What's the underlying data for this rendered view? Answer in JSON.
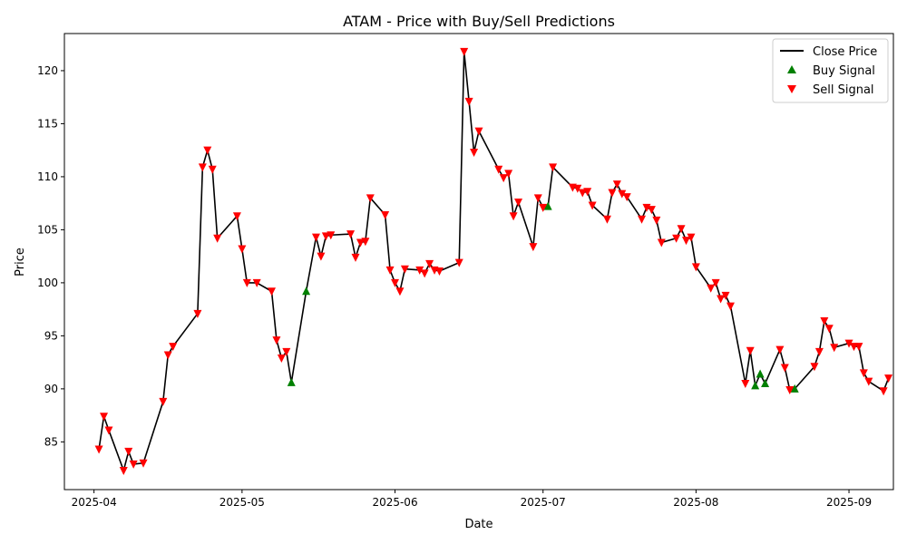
{
  "chart_data": {
    "type": "line",
    "title": "ATAM - Price with Buy/Sell Predictions",
    "xlabel": "Date",
    "ylabel": "Price",
    "x_ticks": [
      "2025-04",
      "2025-05",
      "2025-06",
      "2025-07",
      "2025-08",
      "2025-09"
    ],
    "y_ticks": [
      85,
      90,
      95,
      100,
      105,
      110,
      115,
      120
    ],
    "ylim": [
      80.5,
      123.5
    ],
    "xlim": [
      "2025-03-26",
      "2025-09-10"
    ],
    "grid": false,
    "legend_position": "top-right",
    "colors": {
      "close": "#000000",
      "buy": "#008000",
      "sell": "#ff0000"
    },
    "series": [
      {
        "name": "Close Price",
        "type": "line",
        "points": [
          [
            "2025-04-02",
            84.3
          ],
          [
            "2025-04-03",
            87.4
          ],
          [
            "2025-04-04",
            86.1
          ],
          [
            "2025-04-07",
            82.3
          ],
          [
            "2025-04-08",
            84.1
          ],
          [
            "2025-04-09",
            82.9
          ],
          [
            "2025-04-11",
            83.0
          ],
          [
            "2025-04-15",
            88.8
          ],
          [
            "2025-04-16",
            93.2
          ],
          [
            "2025-04-17",
            94.0
          ],
          [
            "2025-04-22",
            97.1
          ],
          [
            "2025-04-23",
            110.9
          ],
          [
            "2025-04-24",
            112.5
          ],
          [
            "2025-04-25",
            110.7
          ],
          [
            "2025-04-26",
            104.2
          ],
          [
            "2025-04-30",
            106.3
          ],
          [
            "2025-05-01",
            103.2
          ],
          [
            "2025-05-02",
            100.0
          ],
          [
            "2025-05-04",
            100.0
          ],
          [
            "2025-05-07",
            99.2
          ],
          [
            "2025-05-08",
            94.6
          ],
          [
            "2025-05-09",
            92.9
          ],
          [
            "2025-05-10",
            93.5
          ],
          [
            "2025-05-11",
            90.6
          ],
          [
            "2025-05-14",
            99.2
          ],
          [
            "2025-05-16",
            104.3
          ],
          [
            "2025-05-17",
            102.5
          ],
          [
            "2025-05-18",
            104.4
          ],
          [
            "2025-05-19",
            104.5
          ],
          [
            "2025-05-23",
            104.6
          ],
          [
            "2025-05-24",
            102.4
          ],
          [
            "2025-05-25",
            103.8
          ],
          [
            "2025-05-26",
            103.9
          ],
          [
            "2025-05-27",
            108.0
          ],
          [
            "2025-05-30",
            106.4
          ],
          [
            "2025-05-31",
            101.2
          ],
          [
            "2025-06-01",
            100.0
          ],
          [
            "2025-06-02",
            99.2
          ],
          [
            "2025-06-03",
            101.3
          ],
          [
            "2025-06-06",
            101.2
          ],
          [
            "2025-06-07",
            100.9
          ],
          [
            "2025-06-08",
            101.8
          ],
          [
            "2025-06-09",
            101.2
          ],
          [
            "2025-06-10",
            101.1
          ],
          [
            "2025-06-14",
            101.9
          ],
          [
            "2025-06-15",
            121.8
          ],
          [
            "2025-06-16",
            117.1
          ],
          [
            "2025-06-17",
            112.3
          ],
          [
            "2025-06-18",
            114.3
          ],
          [
            "2025-06-22",
            110.7
          ],
          [
            "2025-06-23",
            109.9
          ],
          [
            "2025-06-24",
            110.3
          ],
          [
            "2025-06-25",
            106.3
          ],
          [
            "2025-06-26",
            107.6
          ],
          [
            "2025-06-29",
            103.4
          ],
          [
            "2025-06-30",
            108.0
          ],
          [
            "2025-07-01",
            107.1
          ],
          [
            "2025-07-02",
            107.2
          ],
          [
            "2025-07-03",
            110.9
          ],
          [
            "2025-07-07",
            109.0
          ],
          [
            "2025-07-08",
            108.9
          ],
          [
            "2025-07-09",
            108.5
          ],
          [
            "2025-07-10",
            108.6
          ],
          [
            "2025-07-11",
            107.3
          ],
          [
            "2025-07-14",
            106.0
          ],
          [
            "2025-07-15",
            108.5
          ],
          [
            "2025-07-16",
            109.3
          ],
          [
            "2025-07-17",
            108.4
          ],
          [
            "2025-07-18",
            108.1
          ],
          [
            "2025-07-21",
            106.0
          ],
          [
            "2025-07-22",
            107.1
          ],
          [
            "2025-07-23",
            106.9
          ],
          [
            "2025-07-24",
            105.9
          ],
          [
            "2025-07-25",
            103.8
          ],
          [
            "2025-07-28",
            104.2
          ],
          [
            "2025-07-29",
            105.1
          ],
          [
            "2025-07-30",
            104.0
          ],
          [
            "2025-07-31",
            104.3
          ],
          [
            "2025-08-01",
            101.5
          ],
          [
            "2025-08-04",
            99.5
          ],
          [
            "2025-08-05",
            100.0
          ],
          [
            "2025-08-06",
            98.5
          ],
          [
            "2025-08-07",
            98.8
          ],
          [
            "2025-08-08",
            97.8
          ],
          [
            "2025-08-11",
            90.5
          ],
          [
            "2025-08-12",
            93.6
          ],
          [
            "2025-08-13",
            90.3
          ],
          [
            "2025-08-14",
            91.4
          ],
          [
            "2025-08-15",
            90.5
          ],
          [
            "2025-08-18",
            93.7
          ],
          [
            "2025-08-19",
            92.0
          ],
          [
            "2025-08-20",
            89.9
          ],
          [
            "2025-08-21",
            90.0
          ],
          [
            "2025-08-25",
            92.1
          ],
          [
            "2025-08-26",
            93.5
          ],
          [
            "2025-08-27",
            96.4
          ],
          [
            "2025-08-28",
            95.7
          ],
          [
            "2025-08-29",
            93.9
          ],
          [
            "2025-09-01",
            94.3
          ],
          [
            "2025-09-02",
            94.0
          ],
          [
            "2025-09-03",
            94.0
          ],
          [
            "2025-09-04",
            91.5
          ],
          [
            "2025-09-05",
            90.7
          ],
          [
            "2025-09-08",
            89.8
          ],
          [
            "2025-09-09",
            91.0
          ]
        ]
      },
      {
        "name": "Buy Signal",
        "type": "scatter",
        "marker": "triangle-up",
        "points": [
          [
            "2025-05-11",
            90.6
          ],
          [
            "2025-05-14",
            99.2
          ],
          [
            "2025-07-02",
            107.2
          ],
          [
            "2025-08-13",
            90.3
          ],
          [
            "2025-08-14",
            91.4
          ],
          [
            "2025-08-15",
            90.5
          ],
          [
            "2025-08-21",
            90.0
          ]
        ]
      },
      {
        "name": "Sell Signal",
        "type": "scatter",
        "marker": "triangle-down",
        "points": [
          [
            "2025-04-02",
            84.3
          ],
          [
            "2025-04-03",
            87.4
          ],
          [
            "2025-04-04",
            86.1
          ],
          [
            "2025-04-07",
            82.3
          ],
          [
            "2025-04-08",
            84.1
          ],
          [
            "2025-04-09",
            82.9
          ],
          [
            "2025-04-11",
            83.0
          ],
          [
            "2025-04-15",
            88.8
          ],
          [
            "2025-04-16",
            93.2
          ],
          [
            "2025-04-17",
            94.0
          ],
          [
            "2025-04-22",
            97.1
          ],
          [
            "2025-04-23",
            110.9
          ],
          [
            "2025-04-24",
            112.5
          ],
          [
            "2025-04-25",
            110.7
          ],
          [
            "2025-04-26",
            104.2
          ],
          [
            "2025-04-30",
            106.3
          ],
          [
            "2025-05-01",
            103.2
          ],
          [
            "2025-05-02",
            100.0
          ],
          [
            "2025-05-04",
            100.0
          ],
          [
            "2025-05-07",
            99.2
          ],
          [
            "2025-05-08",
            94.6
          ],
          [
            "2025-05-09",
            92.9
          ],
          [
            "2025-05-10",
            93.5
          ],
          [
            "2025-05-16",
            104.3
          ],
          [
            "2025-05-17",
            102.5
          ],
          [
            "2025-05-18",
            104.4
          ],
          [
            "2025-05-19",
            104.5
          ],
          [
            "2025-05-23",
            104.6
          ],
          [
            "2025-05-24",
            102.4
          ],
          [
            "2025-05-25",
            103.8
          ],
          [
            "2025-05-26",
            103.9
          ],
          [
            "2025-05-27",
            108.0
          ],
          [
            "2025-05-30",
            106.4
          ],
          [
            "2025-05-31",
            101.2
          ],
          [
            "2025-06-01",
            100.0
          ],
          [
            "2025-06-02",
            99.2
          ],
          [
            "2025-06-03",
            101.3
          ],
          [
            "2025-06-06",
            101.2
          ],
          [
            "2025-06-07",
            100.9
          ],
          [
            "2025-06-08",
            101.8
          ],
          [
            "2025-06-09",
            101.2
          ],
          [
            "2025-06-10",
            101.1
          ],
          [
            "2025-06-14",
            101.9
          ],
          [
            "2025-06-15",
            121.8
          ],
          [
            "2025-06-16",
            117.1
          ],
          [
            "2025-06-17",
            112.3
          ],
          [
            "2025-06-18",
            114.3
          ],
          [
            "2025-06-22",
            110.7
          ],
          [
            "2025-06-23",
            109.9
          ],
          [
            "2025-06-24",
            110.3
          ],
          [
            "2025-06-25",
            106.3
          ],
          [
            "2025-06-26",
            107.6
          ],
          [
            "2025-06-29",
            103.4
          ],
          [
            "2025-06-30",
            108.0
          ],
          [
            "2025-07-01",
            107.1
          ],
          [
            "2025-07-03",
            110.9
          ],
          [
            "2025-07-07",
            109.0
          ],
          [
            "2025-07-08",
            108.9
          ],
          [
            "2025-07-09",
            108.5
          ],
          [
            "2025-07-10",
            108.6
          ],
          [
            "2025-07-11",
            107.3
          ],
          [
            "2025-07-14",
            106.0
          ],
          [
            "2025-07-15",
            108.5
          ],
          [
            "2025-07-16",
            109.3
          ],
          [
            "2025-07-17",
            108.4
          ],
          [
            "2025-07-18",
            108.1
          ],
          [
            "2025-07-21",
            106.0
          ],
          [
            "2025-07-22",
            107.1
          ],
          [
            "2025-07-23",
            106.9
          ],
          [
            "2025-07-24",
            105.9
          ],
          [
            "2025-07-25",
            103.8
          ],
          [
            "2025-07-28",
            104.2
          ],
          [
            "2025-07-29",
            105.1
          ],
          [
            "2025-07-30",
            104.0
          ],
          [
            "2025-07-31",
            104.3
          ],
          [
            "2025-08-01",
            101.5
          ],
          [
            "2025-08-04",
            99.5
          ],
          [
            "2025-08-05",
            100.0
          ],
          [
            "2025-08-06",
            98.5
          ],
          [
            "2025-08-07",
            98.8
          ],
          [
            "2025-08-08",
            97.8
          ],
          [
            "2025-08-11",
            90.5
          ],
          [
            "2025-08-12",
            93.6
          ],
          [
            "2025-08-18",
            93.7
          ],
          [
            "2025-08-19",
            92.0
          ],
          [
            "2025-08-20",
            89.9
          ],
          [
            "2025-08-25",
            92.1
          ],
          [
            "2025-08-26",
            93.5
          ],
          [
            "2025-08-27",
            96.4
          ],
          [
            "2025-08-28",
            95.7
          ],
          [
            "2025-08-29",
            93.9
          ],
          [
            "2025-09-01",
            94.3
          ],
          [
            "2025-09-02",
            94.0
          ],
          [
            "2025-09-03",
            94.0
          ],
          [
            "2025-09-04",
            91.5
          ],
          [
            "2025-09-05",
            90.7
          ],
          [
            "2025-09-08",
            89.8
          ],
          [
            "2025-09-09",
            91.0
          ]
        ]
      }
    ]
  }
}
